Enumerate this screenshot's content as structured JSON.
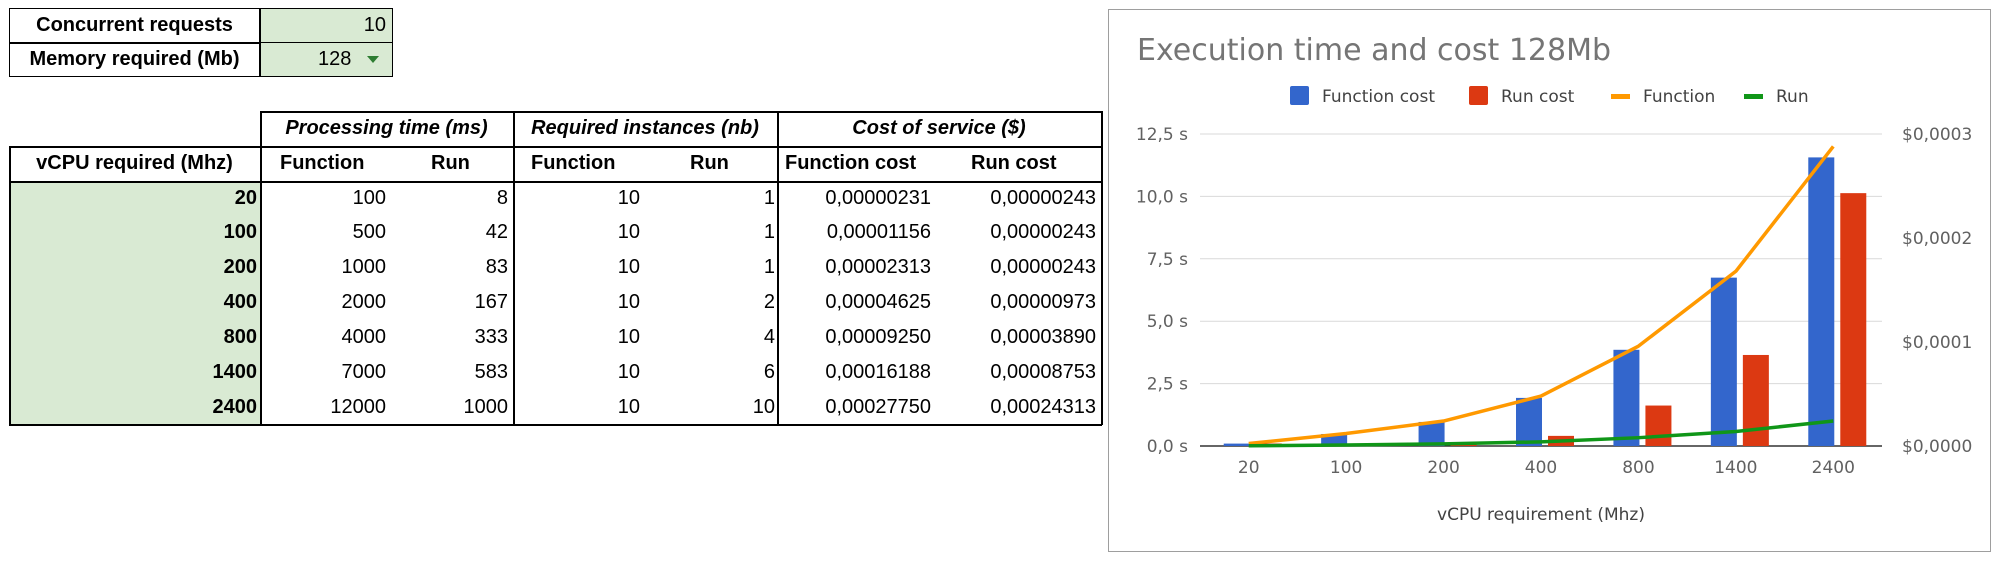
{
  "params": {
    "concurrent_label": "Concurrent requests",
    "concurrent_value": "10",
    "memory_label": "Memory required (Mb)",
    "memory_value": "128"
  },
  "table": {
    "group_headers": [
      "Processing time (ms)",
      "Required instances (nb)",
      "Cost of service ($)"
    ],
    "row_header": "vCPU required (Mhz)",
    "sub_headers": [
      "Function",
      "Run",
      "Function",
      "Run",
      "Function cost",
      "Run cost"
    ],
    "rows": [
      {
        "vcpu": "20",
        "pt_function": "100",
        "pt_run": "8",
        "ri_function": "10",
        "ri_run": "1",
        "cost_function": "0,00000231",
        "cost_run": "0,00000243"
      },
      {
        "vcpu": "100",
        "pt_function": "500",
        "pt_run": "42",
        "ri_function": "10",
        "ri_run": "1",
        "cost_function": "0,00001156",
        "cost_run": "0,00000243"
      },
      {
        "vcpu": "200",
        "pt_function": "1000",
        "pt_run": "83",
        "ri_function": "10",
        "ri_run": "1",
        "cost_function": "0,00002313",
        "cost_run": "0,00000243"
      },
      {
        "vcpu": "400",
        "pt_function": "2000",
        "pt_run": "167",
        "ri_function": "10",
        "ri_run": "2",
        "cost_function": "0,00004625",
        "cost_run": "0,00000973"
      },
      {
        "vcpu": "800",
        "pt_function": "4000",
        "pt_run": "333",
        "ri_function": "10",
        "ri_run": "4",
        "cost_function": "0,00009250",
        "cost_run": "0,00003890"
      },
      {
        "vcpu": "1400",
        "pt_function": "7000",
        "pt_run": "583",
        "ri_function": "10",
        "ri_run": "6",
        "cost_function": "0,00016188",
        "cost_run": "0,00008753"
      },
      {
        "vcpu": "2400",
        "pt_function": "12000",
        "pt_run": "1000",
        "ri_function": "10",
        "ri_run": "10",
        "cost_function": "0,00027750",
        "cost_run": "0,00024313"
      }
    ]
  },
  "chart_data": {
    "type": "bar+line",
    "title": "Execution time and cost 128Mb",
    "xlabel": "vCPU requirement (Mhz)",
    "categories": [
      "20",
      "100",
      "200",
      "400",
      "800",
      "1400",
      "2400"
    ],
    "left_axis": {
      "ticks": [
        "0,0 s",
        "2,5 s",
        "5,0 s",
        "7,5 s",
        "10,0 s",
        "12,5 s"
      ],
      "ylim": [
        0,
        12.5
      ],
      "unit": "s"
    },
    "right_axis": {
      "ticks": [
        "$0,0000",
        "$0,0001",
        "$0,0002",
        "$0,0003"
      ],
      "ylim": [
        0,
        0.0003
      ],
      "unit": "$"
    },
    "legend_position": "top",
    "grid": true,
    "series": [
      {
        "name": "Function cost",
        "kind": "bar",
        "axis": "right",
        "color": "#3366cc",
        "values": [
          2.31e-06,
          1.156e-05,
          2.313e-05,
          4.625e-05,
          9.25e-05,
          0.00016188,
          0.0002775
        ]
      },
      {
        "name": "Run cost",
        "kind": "bar",
        "axis": "right",
        "color": "#dc3912",
        "values": [
          2.43e-06,
          2.43e-06,
          2.43e-06,
          9.73e-06,
          3.89e-05,
          8.753e-05,
          0.00024313
        ]
      },
      {
        "name": "Function",
        "kind": "line",
        "axis": "left",
        "color": "#ff9900",
        "values": [
          0.1,
          0.5,
          1.0,
          2.0,
          4.0,
          7.0,
          12.0
        ]
      },
      {
        "name": "Run",
        "kind": "line",
        "axis": "left",
        "color": "#109618",
        "values": [
          0.008,
          0.042,
          0.083,
          0.167,
          0.333,
          0.583,
          1.0
        ]
      }
    ]
  }
}
